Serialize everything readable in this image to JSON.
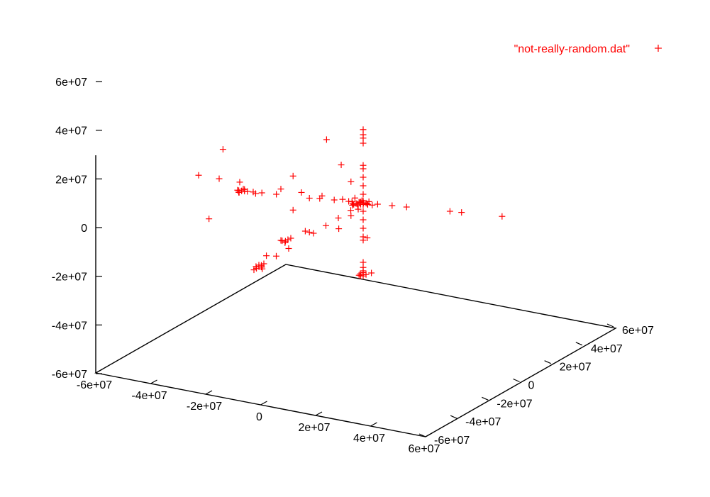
{
  "chart_data": {
    "type": "scatter",
    "dimensions": 3,
    "title": "",
    "legend": {
      "label": "\"not-really-random.dat\"",
      "placement": "top-right",
      "marker": "+",
      "color": "#ff0000"
    },
    "xlim": [
      -60000000,
      60000000
    ],
    "ylim": [
      -60000000,
      60000000
    ],
    "zlim": [
      -60000000,
      60000000
    ],
    "x_ticks": [
      "-6e+07",
      "-4e+07",
      "-2e+07",
      "0",
      "2e+07",
      "4e+07",
      "6e+07"
    ],
    "y_ticks": [
      "-6e+07",
      "-4e+07",
      "-2e+07",
      "0",
      "2e+07",
      "4e+07",
      "6e+07"
    ],
    "z_ticks": [
      "-6e+07",
      "-4e+07",
      "-2e+07",
      "0",
      "2e+07",
      "4e+07",
      "6e+07"
    ],
    "grid": false,
    "series": [
      {
        "color": "#ff0000",
        "marker": "+",
        "points": [
          [
            0,
            0,
            0
          ],
          [
            1000000,
            0,
            0
          ],
          [
            -1000000,
            0,
            0
          ],
          [
            0,
            1000000,
            0
          ],
          [
            0,
            -1000000,
            0
          ],
          [
            0,
            0,
            1000000
          ],
          [
            0,
            0,
            -1000000
          ],
          [
            1000000,
            1000000,
            1000000
          ],
          [
            -1000000,
            -1000000,
            -1000000
          ],
          [
            1000000,
            -1000000,
            1000000
          ],
          [
            -1000000,
            1000000,
            -1000000
          ],
          [
            2000000,
            0,
            1000000
          ],
          [
            -2000000,
            0,
            -1000000
          ],
          [
            0,
            2000000,
            2000000
          ],
          [
            0,
            -2000000,
            -2000000
          ],
          [
            2000000,
            2000000,
            0
          ],
          [
            -2000000,
            -2000000,
            0
          ],
          [
            3000000,
            1000000,
            -1000000
          ],
          [
            -3000000,
            -1000000,
            1000000
          ],
          [
            1000000,
            3000000,
            -2000000
          ],
          [
            -1000000,
            -3000000,
            2000000
          ],
          [
            0,
            0,
            5000000
          ],
          [
            0,
            0,
            -5000000
          ],
          [
            5000000,
            0,
            0
          ],
          [
            -5000000,
            0,
            0
          ],
          [
            0,
            5000000,
            0
          ],
          [
            0,
            -5000000,
            0
          ],
          [
            0,
            0,
            10000000
          ],
          [
            0,
            0,
            -10000000
          ],
          [
            10000000,
            0,
            0
          ],
          [
            -10000000,
            0,
            0
          ],
          [
            0,
            10000000,
            0
          ],
          [
            0,
            -10000000,
            0
          ],
          [
            0,
            0,
            15000000
          ],
          [
            0,
            0,
            -15000000
          ],
          [
            15000000,
            0,
            0
          ],
          [
            -15000000,
            0,
            0
          ],
          [
            0,
            15000000,
            0
          ],
          [
            0,
            -15000000,
            0
          ],
          [
            0,
            0,
            20000000
          ],
          [
            0,
            0,
            22000000
          ],
          [
            0,
            0,
            35000000
          ],
          [
            0,
            0,
            38000000
          ],
          [
            0,
            0,
            40000000
          ],
          [
            0,
            0,
            43000000
          ],
          [
            0,
            0,
            -20000000
          ],
          [
            0,
            0,
            -22000000
          ],
          [
            0,
            0,
            -35000000
          ],
          [
            0,
            0,
            -38000000
          ],
          [
            0,
            0,
            -40000000
          ],
          [
            0,
            0,
            -41000000
          ],
          [
            0,
            0,
            -42000000
          ],
          [
            0,
            0,
            -43000000
          ],
          [
            1000000,
            0,
            -42000000
          ],
          [
            -1000000,
            0,
            -42000000
          ],
          [
            0,
            1000000,
            -43000000
          ],
          [
            0,
            -1000000,
            -42000000
          ],
          [
            30000000,
            0,
            0
          ],
          [
            34000000,
            0,
            0
          ],
          [
            48000000,
            0,
            0
          ],
          [
            -30000000,
            0,
            0
          ],
          [
            -35000000,
            0,
            0
          ],
          [
            -38000000,
            0,
            0
          ],
          [
            -40000000,
            0,
            0
          ],
          [
            -41000000,
            0,
            0
          ],
          [
            -42000000,
            0,
            0
          ],
          [
            -43000000,
            0,
            0
          ],
          [
            -42000000,
            1000000,
            0
          ],
          [
            -42000000,
            -1000000,
            0
          ],
          [
            -41000000,
            0,
            1000000
          ],
          [
            -43000000,
            0,
            -1000000
          ],
          [
            -40000000,
            1000000,
            1000000
          ],
          [
            0,
            20000000,
            0
          ],
          [
            0,
            30000000,
            0
          ],
          [
            0,
            35000000,
            0
          ],
          [
            0,
            40000000,
            0
          ],
          [
            0,
            -20000000,
            0
          ],
          [
            0,
            -30000000,
            0
          ],
          [
            0,
            -35000000,
            0
          ],
          [
            0,
            -40000000,
            0
          ],
          [
            0,
            -41000000,
            0
          ],
          [
            0,
            -42000000,
            0
          ],
          [
            0,
            -43000000,
            0
          ],
          [
            1000000,
            -42000000,
            0
          ],
          [
            -1000000,
            -42000000,
            0
          ],
          [
            0,
            -42000000,
            1000000
          ],
          [
            0,
            -41000000,
            -1000000
          ],
          [
            2000000,
            -43000000,
            0
          ],
          [
            0,
            -44000000,
            0
          ],
          [
            10000000,
            10000000,
            10000000
          ],
          [
            18000000,
            18000000,
            18000000
          ],
          [
            30000000,
            30000000,
            30000000
          ],
          [
            -10000000,
            -10000000,
            -10000000
          ],
          [
            -18000000,
            -18000000,
            -18000000
          ],
          [
            10000000,
            -10000000,
            10000000
          ],
          [
            22000000,
            -22000000,
            22000000
          ],
          [
            -10000000,
            10000000,
            -10000000
          ],
          [
            -22000000,
            22000000,
            -22000000
          ],
          [
            10000000,
            10000000,
            -10000000
          ],
          [
            20000000,
            20000000,
            -20000000
          ],
          [
            -10000000,
            -10000000,
            10000000
          ],
          [
            -20000000,
            -20000000,
            20000000
          ],
          [
            10000000,
            -10000000,
            -10000000
          ],
          [
            20000000,
            -20000000,
            -20000000
          ],
          [
            -10000000,
            10000000,
            10000000
          ],
          [
            -20000000,
            20000000,
            20000000
          ],
          [
            -20000000,
            0,
            -20000000
          ],
          [
            -25000000,
            0,
            -25000000
          ],
          [
            -26000000,
            0,
            -26000000
          ],
          [
            -27000000,
            1000000,
            -27000000
          ],
          [
            -26000000,
            -1000000,
            -26000000
          ],
          [
            -27000000,
            0,
            -28000000
          ],
          [
            -28000000,
            0,
            -27000000
          ]
        ]
      }
    ]
  }
}
